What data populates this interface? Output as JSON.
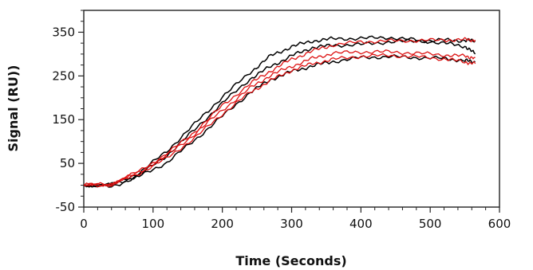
{
  "chart_data": {
    "type": "line",
    "title": "",
    "xlabel": "Time (Seconds)",
    "ylabel": "Signal (RU))",
    "xlim": [
      0,
      600
    ],
    "ylim": [
      -50,
      400
    ],
    "x_ticks": [
      "0",
      "100",
      "200",
      "300",
      "400",
      "500",
      "600"
    ],
    "y_ticks": [
      "-50",
      "50",
      "150",
      "250",
      "350"
    ],
    "grid": false,
    "legend": "none",
    "series": [
      {
        "color": "#000000",
        "x": [
          0,
          40,
          80,
          120,
          160,
          200,
          240,
          270,
          300,
          330,
          360,
          400,
          440,
          480,
          520,
          550,
          565
        ],
        "y": [
          0,
          1,
          28,
          78,
          140,
          202,
          258,
          296,
          317,
          330,
          335,
          336,
          338,
          332,
          325,
          318,
          300
        ]
      },
      {
        "color": "#000000",
        "x": [
          0,
          40,
          80,
          120,
          160,
          200,
          240,
          270,
          300,
          330,
          360,
          400,
          440,
          480,
          520,
          550,
          565
        ],
        "y": [
          0,
          0,
          23,
          68,
          127,
          188,
          243,
          272,
          296,
          315,
          320,
          322,
          328,
          330,
          332,
          331,
          330
        ]
      },
      {
        "color": "#000000",
        "x": [
          0,
          40,
          80,
          120,
          160,
          200,
          240,
          270,
          300,
          330,
          360,
          400,
          440,
          480,
          520,
          550,
          565
        ],
        "y": [
          0,
          -3,
          20,
          52,
          103,
          158,
          212,
          242,
          260,
          273,
          283,
          292,
          294,
          292,
          290,
          285,
          282
        ]
      },
      {
        "color": "#dd1111",
        "x": [
          0,
          40,
          80,
          120,
          160,
          200,
          240,
          270,
          300,
          330,
          360,
          400,
          440,
          480,
          520,
          550,
          565
        ],
        "y": [
          0,
          3,
          32,
          72,
          122,
          182,
          232,
          262,
          288,
          307,
          321,
          328,
          330,
          331,
          332,
          333,
          332
        ]
      },
      {
        "color": "#dd1111",
        "x": [
          0,
          40,
          80,
          120,
          160,
          200,
          240,
          270,
          300,
          330,
          360,
          400,
          440,
          480,
          520,
          550,
          565
        ],
        "y": [
          0,
          2,
          30,
          68,
          117,
          172,
          222,
          252,
          272,
          290,
          302,
          305,
          305,
          302,
          298,
          295,
          292
        ]
      },
      {
        "color": "#dd1111",
        "x": [
          0,
          40,
          80,
          120,
          160,
          200,
          240,
          270,
          300,
          330,
          360,
          400,
          440,
          480,
          520,
          550,
          565
        ],
        "y": [
          0,
          1,
          27,
          62,
          108,
          163,
          212,
          240,
          263,
          278,
          288,
          295,
          297,
          294,
          289,
          282,
          278
        ]
      }
    ]
  }
}
